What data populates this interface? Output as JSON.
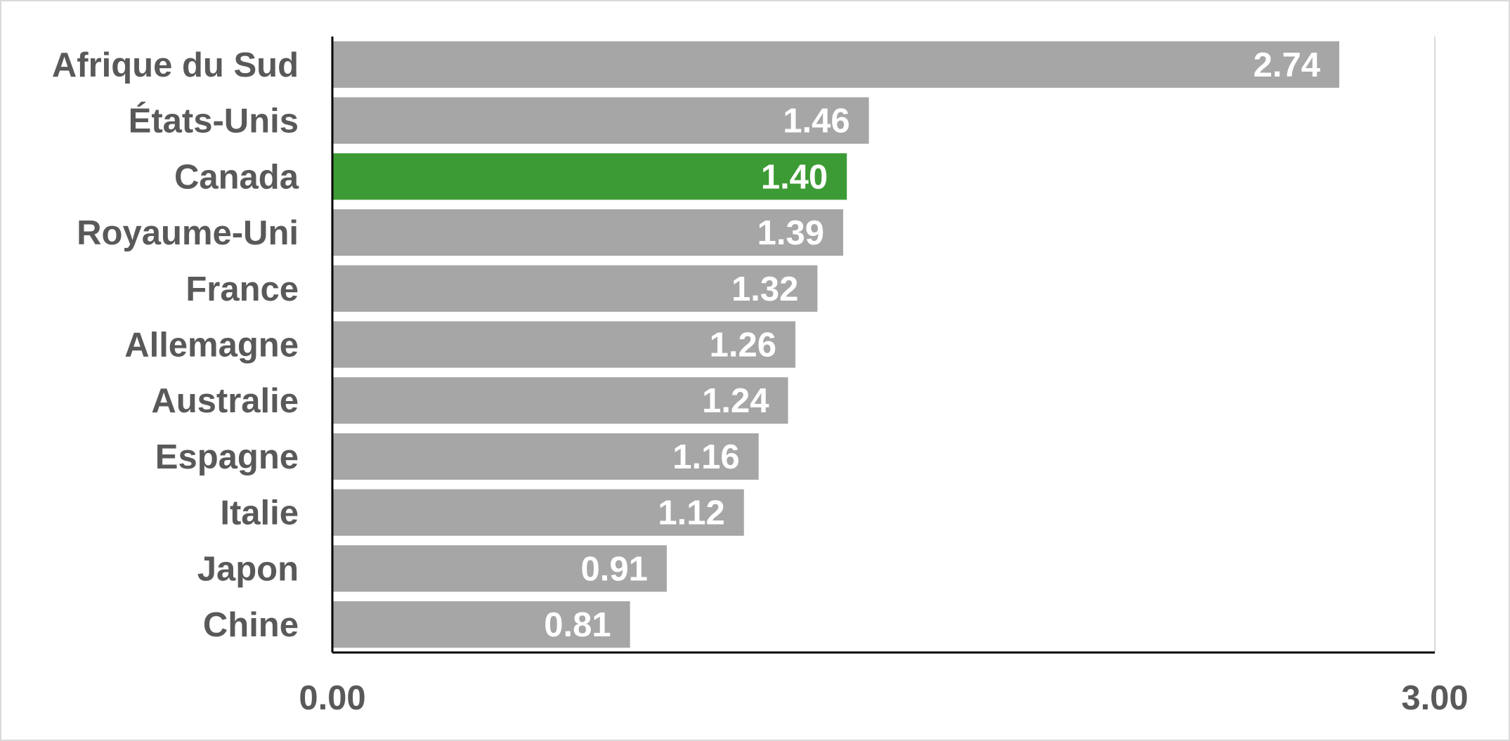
{
  "chart_data": {
    "type": "bar",
    "orientation": "horizontal",
    "categories": [
      "Afrique du Sud",
      "États-Unis",
      "Canada",
      "Royaume-Uni",
      "France",
      "Allemagne",
      "Australie",
      "Espagne",
      "Italie",
      "Japon",
      "Chine"
    ],
    "values": [
      2.74,
      1.46,
      1.4,
      1.39,
      1.32,
      1.26,
      1.24,
      1.16,
      1.12,
      0.91,
      0.81
    ],
    "value_labels": [
      "2.74",
      "1.46",
      "1.40",
      "1.39",
      "1.32",
      "1.26",
      "1.24",
      "1.16",
      "1.12",
      "0.91",
      "0.81"
    ],
    "highlight": "Canada",
    "xlim": [
      0,
      3
    ],
    "x_tick_labels": [
      "0.00",
      "3.00"
    ],
    "title": "",
    "xlabel": "",
    "ylabel": "",
    "grid": false,
    "legend": "none",
    "colors": {
      "bar": "#a6a6a6",
      "highlight": "#3d9b35",
      "label_text": "#595959",
      "value_text": "#ffffff",
      "axis": "#000000",
      "gridline": "#d9d9d9"
    }
  }
}
